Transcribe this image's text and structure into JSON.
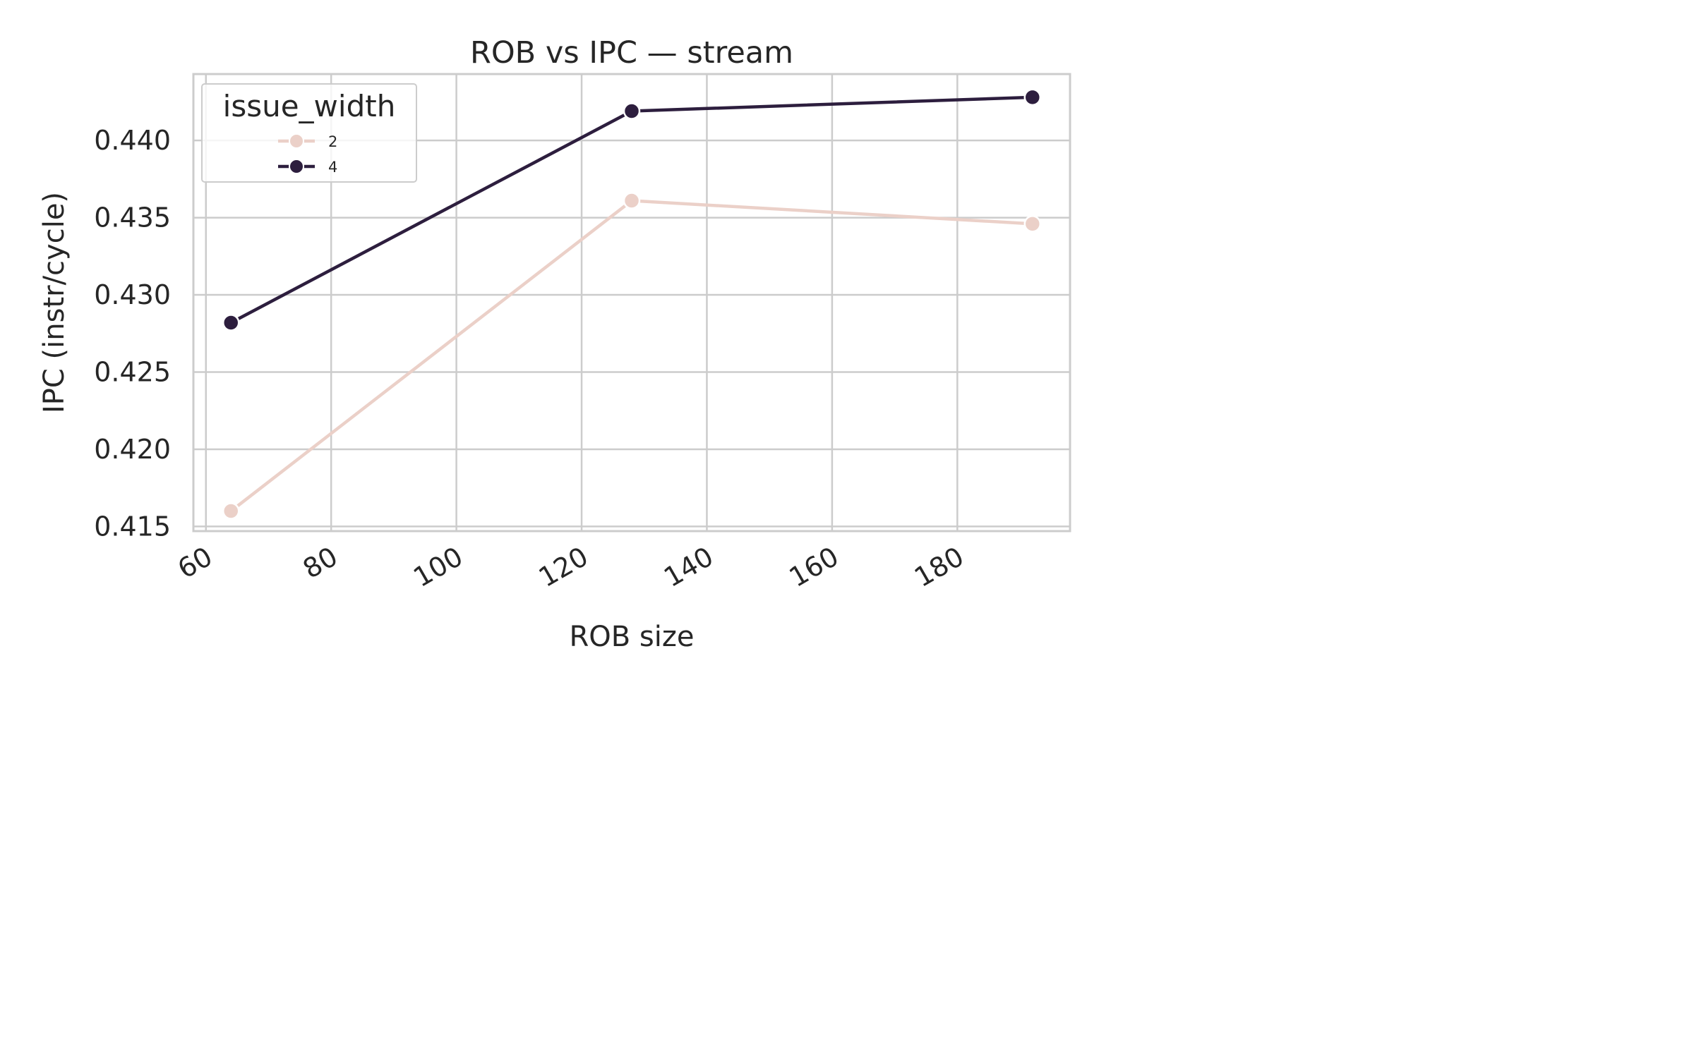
{
  "chart_data": {
    "type": "line",
    "title": "ROB vs IPC — stream",
    "xlabel": "ROB size",
    "ylabel": "IPC (instr/cycle)",
    "xlim": [
      58,
      198
    ],
    "ylim": [
      0.4147,
      0.4443
    ],
    "xticks": [
      60,
      80,
      100,
      120,
      140,
      160,
      180
    ],
    "yticks": [
      0.415,
      0.42,
      0.425,
      0.43,
      0.435,
      0.44
    ],
    "xtick_labels": [
      "60",
      "80",
      "100",
      "120",
      "140",
      "160",
      "180"
    ],
    "ytick_labels": [
      "0.415",
      "0.420",
      "0.425",
      "0.430",
      "0.435",
      "0.440"
    ],
    "x": [
      64,
      128,
      192
    ],
    "grid": true,
    "legend": {
      "title": "issue_width",
      "placement": "upper-left"
    },
    "series": [
      {
        "name": "2",
        "color": "#ebd0c8",
        "values": [
          0.416,
          0.4361,
          0.4346
        ]
      },
      {
        "name": "4",
        "color": "#2d1e3e",
        "values": [
          0.4282,
          0.4419,
          0.4428
        ]
      }
    ]
  }
}
